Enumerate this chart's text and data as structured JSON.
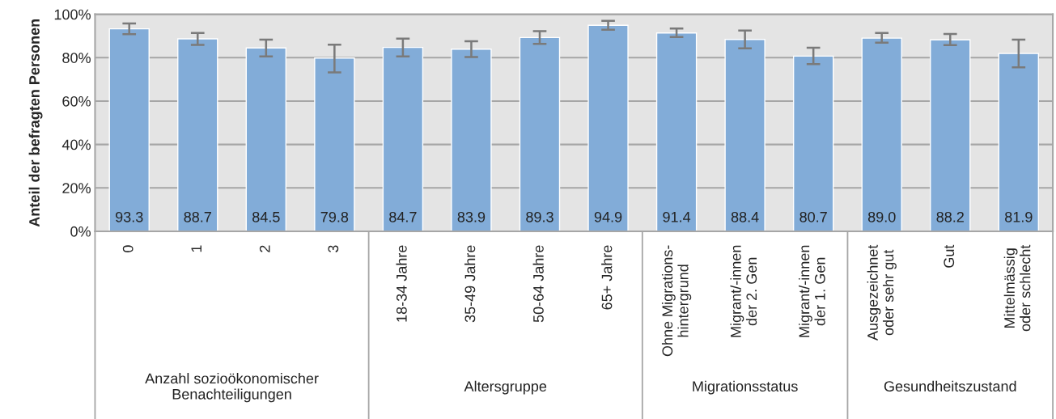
{
  "chart_data": {
    "type": "bar",
    "ylabel": "Anteil der befragten Personen",
    "categories": [
      "0",
      "1",
      "2",
      "3",
      "18-34 Jahre",
      "35-49 Jahre",
      "50-64 Jahre",
      "65+ Jahre",
      "Ohne Migrations-\nhintergrund",
      "Migrant/-innen\nder 2. Gen",
      "Migrant/-innen\nder 1. Gen",
      "Ausgezeichnet\noder sehr gut",
      "Gut",
      "Mittelmässig\noder schlecht"
    ],
    "values": [
      93.3,
      88.7,
      84.5,
      79.8,
      84.7,
      83.9,
      89.3,
      94.9,
      91.4,
      88.4,
      80.7,
      89.0,
      88.2,
      81.9
    ],
    "errors": [
      [
        90.8,
        95.8
      ],
      [
        85.9,
        91.4
      ],
      [
        80.6,
        88.3
      ],
      [
        73.2,
        86.0
      ],
      [
        80.6,
        88.8
      ],
      [
        80.3,
        87.6
      ],
      [
        86.3,
        92.2
      ],
      [
        92.9,
        97.0
      ],
      [
        89.5,
        93.4
      ],
      [
        84.3,
        92.5
      ],
      [
        77.0,
        84.6
      ],
      [
        86.9,
        91.4
      ],
      [
        85.8,
        90.9
      ],
      [
        75.5,
        88.3
      ]
    ],
    "color": "#82acd8",
    "value_labels": [
      "93.3",
      "88.7",
      "84.5",
      "79.8",
      "84.7",
      "83.9",
      "89.3",
      "94.9",
      "91.4",
      "88.4",
      "80.7",
      "89.0",
      "88.2",
      "81.9"
    ],
    "ylim": [
      0,
      100
    ],
    "yticks": [
      {
        "value": 0,
        "label": "0%"
      },
      {
        "value": 20,
        "label": "20%"
      },
      {
        "value": 40,
        "label": "40%"
      },
      {
        "value": 60,
        "label": "60%"
      },
      {
        "value": 80,
        "label": "80%"
      },
      {
        "value": 100,
        "label": "100%"
      }
    ],
    "grid": "y",
    "annotations": [
      "Anzahl sozioökonomischer\nBenachteiligungen",
      "Altersgruppe",
      "Migrationsstatus",
      "Gesundheitszustand"
    ]
  }
}
